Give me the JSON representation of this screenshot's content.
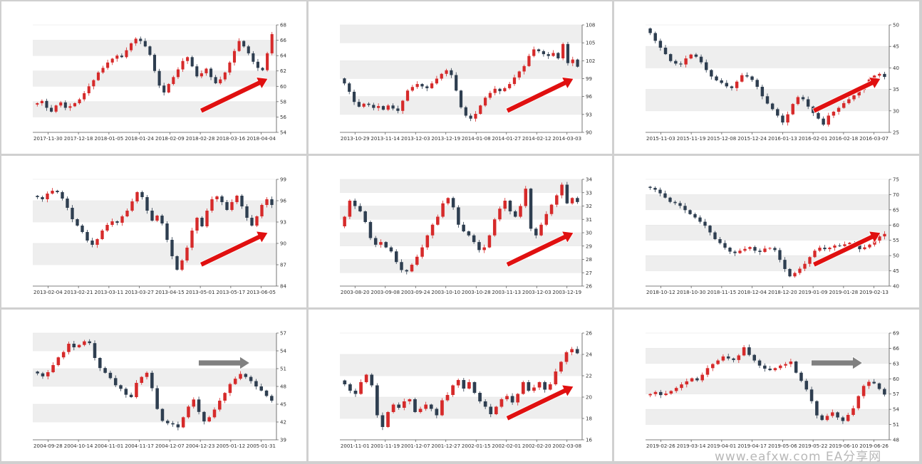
{
  "colors": {
    "bull": "#d62a2a",
    "bear": "#2e3e50",
    "band": "#eeeeee",
    "arrow_up": "#e01010",
    "arrow_flat": "#808080"
  },
  "watermark": "www.eafxw.com EA分享网",
  "chart_data": [
    {
      "type": "candlestick",
      "x_labels": [
        "2017-11-30",
        "2017-12-18",
        "2018-01-05",
        "2018-01-24",
        "2018-02-09",
        "2018-02-28",
        "2018-03-16",
        "2018-04-04"
      ],
      "y_ticks": [
        54,
        56,
        58,
        60,
        62,
        64,
        66,
        68
      ],
      "ylim": [
        54,
        68
      ],
      "grid_bands": true,
      "arrow": "up",
      "close": [
        57.8,
        58.1,
        57.2,
        56.7,
        57.5,
        57.9,
        57.2,
        57.4,
        57.8,
        58.3,
        59.1,
        60.0,
        60.8,
        61.8,
        62.4,
        63.1,
        63.6,
        64.0,
        63.8,
        64.7,
        65.6,
        66.2,
        65.9,
        65.2,
        64.1,
        62.0,
        60.1,
        59.2,
        60.3,
        61.2,
        62.2,
        63.3,
        63.8,
        62.6,
        61.3,
        61.7,
        62.3,
        61.2,
        60.4,
        60.9,
        61.8,
        63.1,
        64.6,
        65.9,
        65.2,
        64.3,
        63.2,
        62.4,
        62.1,
        64.3,
        66.8
      ]
    },
    {
      "type": "candlestick",
      "x_labels": [
        "2013-10-29",
        "2013-11-14",
        "2013-12-03",
        "2013-12-19",
        "2014-01-08",
        "2014-01-27",
        "2014-02-12",
        "2014-03-03"
      ],
      "y_ticks": [
        90,
        93,
        96,
        99,
        102,
        105,
        108
      ],
      "ylim": [
        90,
        108
      ],
      "grid_bands": true,
      "arrow": "up",
      "close": [
        98.2,
        96.8,
        95.1,
        94.3,
        94.8,
        94.6,
        94.1,
        94.4,
        93.8,
        94.5,
        94.0,
        93.6,
        95.3,
        97.0,
        97.6,
        98.1,
        97.7,
        97.4,
        98.2,
        99.0,
        99.8,
        100.4,
        99.6,
        97.0,
        94.2,
        92.8,
        92.3,
        93.1,
        94.5,
        95.8,
        96.6,
        97.3,
        96.9,
        97.4,
        98.1,
        99.2,
        100.2,
        101.1,
        102.8,
        103.9,
        103.6,
        103.1,
        102.8,
        103.3,
        102.4,
        104.8,
        101.6,
        102.2,
        101.0
      ]
    },
    {
      "type": "candlestick",
      "x_labels": [
        "2015-11-03",
        "2015-11-19",
        "2015-12-08",
        "2015-12-24",
        "2016-01-13",
        "2016-02-01",
        "2016-02-18",
        "2016-03-07"
      ],
      "y_ticks": [
        25,
        30,
        35,
        40,
        45,
        50
      ],
      "ylim": [
        25,
        50
      ],
      "grid_bands": true,
      "arrow": "up",
      "close": [
        48.1,
        46.3,
        44.7,
        43.2,
        41.6,
        41.0,
        40.8,
        42.2,
        43.1,
        42.6,
        41.3,
        39.5,
        38.0,
        37.1,
        36.5,
        35.7,
        35.3,
        36.8,
        38.3,
        38.0,
        37.2,
        35.6,
        33.4,
        31.7,
        30.4,
        28.9,
        27.3,
        29.2,
        31.6,
        33.2,
        32.7,
        31.0,
        29.5,
        28.2,
        26.8,
        28.9,
        29.8,
        30.7,
        31.8,
        32.7,
        33.6,
        34.9,
        35.8,
        37.3,
        38.2,
        38.6,
        37.9
      ]
    },
    {
      "type": "candlestick",
      "x_labels": [
        "2013-02-04",
        "2013-02-21",
        "2013-03-11",
        "2013-03-27",
        "2013-04-15",
        "2013-05-01",
        "2013-05-17",
        "2013-06-05"
      ],
      "y_ticks": [
        84,
        87,
        90,
        93,
        96,
        99
      ],
      "ylim": [
        84,
        99
      ],
      "grid_bands": true,
      "arrow": "up",
      "close": [
        96.5,
        96.2,
        97.0,
        97.4,
        97.2,
        96.3,
        95.0,
        93.4,
        92.5,
        91.6,
        90.4,
        89.8,
        90.6,
        91.8,
        92.6,
        93.1,
        92.9,
        93.8,
        94.6,
        95.9,
        97.2,
        96.5,
        94.6,
        93.2,
        93.9,
        92.8,
        90.5,
        88.2,
        86.3,
        87.6,
        89.4,
        91.8,
        93.6,
        92.4,
        94.6,
        96.2,
        96.6,
        95.8,
        94.7,
        95.8,
        96.7,
        95.2,
        93.6,
        92.5,
        93.8,
        95.4,
        96.2,
        95.4
      ]
    },
    {
      "type": "candlestick",
      "x_labels": [
        "2003-08-20",
        "2003-09-08",
        "2003-09-24",
        "2003-10-10",
        "2003-10-28",
        "2003-11-13",
        "2003-12-03",
        "2003-12-19"
      ],
      "y_ticks": [
        26,
        27,
        28,
        29,
        30,
        31,
        32,
        33,
        34
      ],
      "ylim": [
        26,
        34
      ],
      "grid_bands": true,
      "arrow": "up",
      "close": [
        31.2,
        32.4,
        32.0,
        31.6,
        30.8,
        29.6,
        29.1,
        29.3,
        28.9,
        28.6,
        27.8,
        27.2,
        27.1,
        27.6,
        28.2,
        28.9,
        29.8,
        30.6,
        31.2,
        32.2,
        32.6,
        31.9,
        30.6,
        30.1,
        29.8,
        29.3,
        28.7,
        28.9,
        29.8,
        31.0,
        31.8,
        32.4,
        31.6,
        31.2,
        32.0,
        33.3,
        30.3,
        29.8,
        30.6,
        31.4,
        32.1,
        32.8,
        33.6,
        32.2,
        32.6,
        32.3
      ]
    },
    {
      "type": "candlestick",
      "x_labels": [
        "2018-10-12",
        "2018-10-30",
        "2018-11-15",
        "2018-12-04",
        "2018-12-20",
        "2019-01-09",
        "2019-01-28",
        "2019-02-13"
      ],
      "y_ticks": [
        40,
        45,
        50,
        55,
        60,
        65,
        70,
        75
      ],
      "ylim": [
        40,
        75
      ],
      "grid_bands": true,
      "arrow": "up",
      "close": [
        72.2,
        71.6,
        70.4,
        69.0,
        67.6,
        67.2,
        66.3,
        64.9,
        63.6,
        62.5,
        61.1,
        59.8,
        57.6,
        55.4,
        54.1,
        52.6,
        51.3,
        50.8,
        51.6,
        52.2,
        52.8,
        51.6,
        51.2,
        52.3,
        52.5,
        51.8,
        48.6,
        45.6,
        43.2,
        44.3,
        45.7,
        47.3,
        49.5,
        51.6,
        52.6,
        52.1,
        52.6,
        53.3,
        53.1,
        53.7,
        54.2,
        53.4,
        52.1,
        52.7,
        53.6,
        54.9,
        56.3,
        57.1
      ]
    },
    {
      "type": "candlestick",
      "x_labels": [
        "2004-09-28",
        "2004-10-14",
        "2004-11-01",
        "2004-11-17",
        "2004-12-07",
        "2004-12-23",
        "2005-01-12",
        "2005-01-31"
      ],
      "y_ticks": [
        39,
        42,
        45,
        48,
        51,
        54,
        57
      ],
      "ylim": [
        39,
        57
      ],
      "grid_bands": true,
      "arrow": "flat",
      "close": [
        50.2,
        49.7,
        50.4,
        51.6,
        52.9,
        53.8,
        55.2,
        54.6,
        55.0,
        55.6,
        55.3,
        52.8,
        51.1,
        50.3,
        49.4,
        48.2,
        47.6,
        46.6,
        46.2,
        48.6,
        49.6,
        50.3,
        47.7,
        44.2,
        42.2,
        41.8,
        41.6,
        41.1,
        42.8,
        44.6,
        45.8,
        43.7,
        42.1,
        42.8,
        44.1,
        45.6,
        46.9,
        48.4,
        49.3,
        50.1,
        49.6,
        48.9,
        48.0,
        47.3,
        46.4,
        45.6
      ]
    },
    {
      "type": "candlestick",
      "x_labels": [
        "2001-11-01",
        "2001-11-19",
        "2001-12-07",
        "2001-12-27",
        "2002-01-15",
        "2002-02-01",
        "2002-02-20",
        "2002-03-08"
      ],
      "y_ticks": [
        16,
        18,
        20,
        22,
        24,
        26
      ],
      "ylim": [
        16,
        26
      ],
      "grid_bands": true,
      "arrow": "up",
      "close": [
        21.2,
        20.6,
        20.3,
        21.4,
        22.1,
        21.1,
        18.3,
        17.2,
        18.6,
        19.3,
        19.0,
        19.6,
        19.8,
        18.6,
        18.9,
        19.3,
        18.9,
        18.3,
        19.7,
        20.2,
        21.1,
        21.6,
        20.8,
        21.4,
        20.4,
        19.6,
        19.1,
        18.4,
        19.1,
        19.8,
        20.1,
        19.5,
        20.3,
        21.4,
        20.6,
        20.9,
        21.4,
        20.7,
        21.2,
        22.4,
        23.3,
        24.2,
        24.5,
        24.1
      ]
    },
    {
      "type": "candlestick",
      "x_labels": [
        "2019-02-26",
        "2019-03-14",
        "2019-04-01",
        "2019-04-17",
        "2019-05-06",
        "2019-05-22",
        "2019-06-10",
        "2019-06-26"
      ],
      "y_ticks": [
        48,
        51,
        54,
        57,
        60,
        63,
        66,
        69
      ],
      "ylim": [
        48,
        69
      ],
      "grid_bands": true,
      "arrow": "flat",
      "close": [
        57.0,
        57.4,
        56.8,
        57.1,
        57.6,
        58.2,
        58.9,
        59.5,
        60.1,
        59.7,
        60.8,
        62.1,
        62.9,
        63.6,
        64.4,
        64.0,
        63.7,
        64.6,
        66.2,
        64.7,
        63.6,
        62.6,
        62.0,
        61.7,
        62.1,
        62.6,
        62.9,
        63.4,
        61.2,
        59.6,
        57.9,
        55.6,
        52.8,
        51.9,
        52.7,
        53.4,
        52.4,
        51.7,
        52.9,
        54.2,
        56.6,
        58.6,
        59.4,
        59.1,
        58.0,
        56.9
      ]
    }
  ]
}
